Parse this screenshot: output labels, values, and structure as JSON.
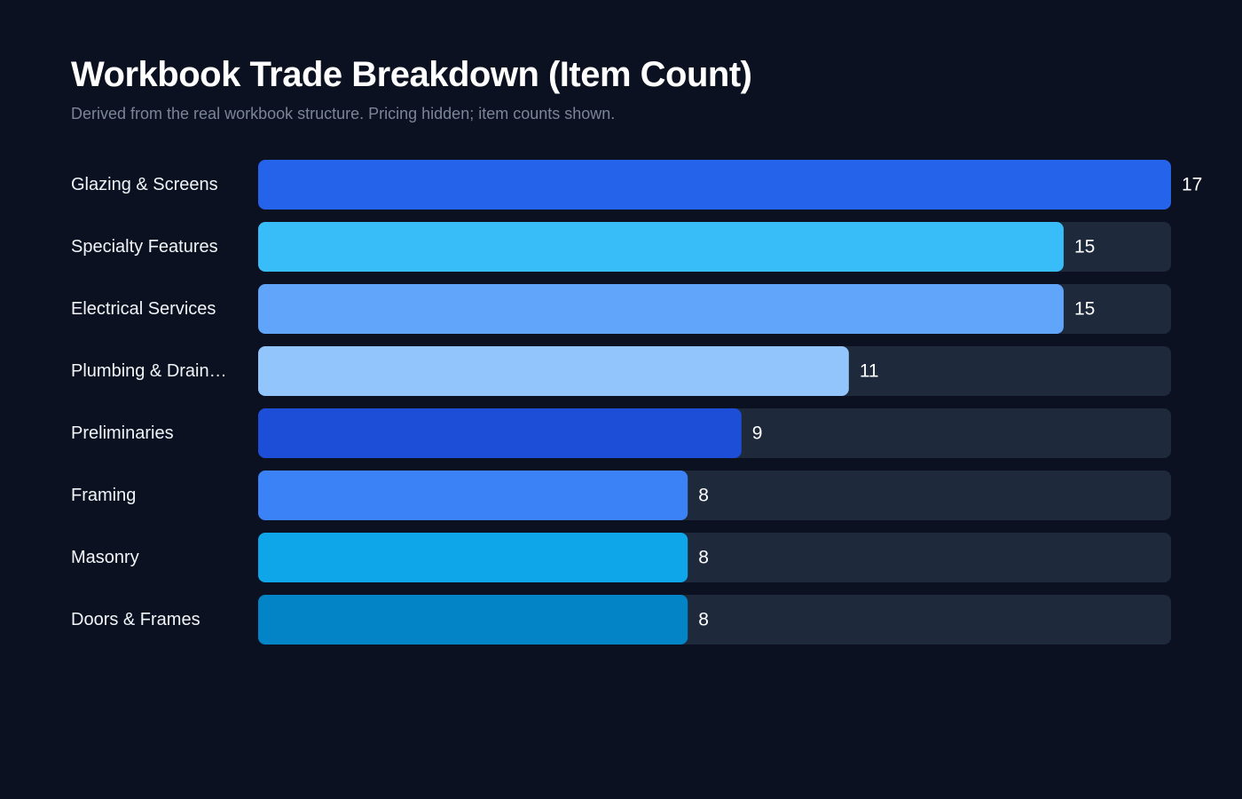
{
  "header": {
    "title": "Workbook Trade Breakdown (Item Count)",
    "subtitle": "Derived from the real workbook structure. Pricing hidden; item counts shown."
  },
  "colors": {
    "background": "#0b1120",
    "track": "#1e293b",
    "bars": [
      "#2563eb",
      "#38bdf8",
      "#60a5fa",
      "#93c5fd",
      "#1d4ed8",
      "#3b82f6",
      "#0ea5e9",
      "#0284c7"
    ]
  },
  "chart_data": {
    "type": "bar",
    "orientation": "horizontal",
    "title": "Workbook Trade Breakdown (Item Count)",
    "subtitle": "Derived from the real workbook structure. Pricing hidden; item counts shown.",
    "categories": [
      "Glazing & Screens",
      "Specialty Features",
      "Electrical Services",
      "Plumbing & Drain…",
      "Preliminaries",
      "Framing",
      "Masonry",
      "Doors & Frames"
    ],
    "values": [
      17,
      15,
      15,
      11,
      9,
      8,
      8,
      8
    ],
    "xlim": [
      0,
      17
    ],
    "grid": false,
    "legend": "none"
  }
}
